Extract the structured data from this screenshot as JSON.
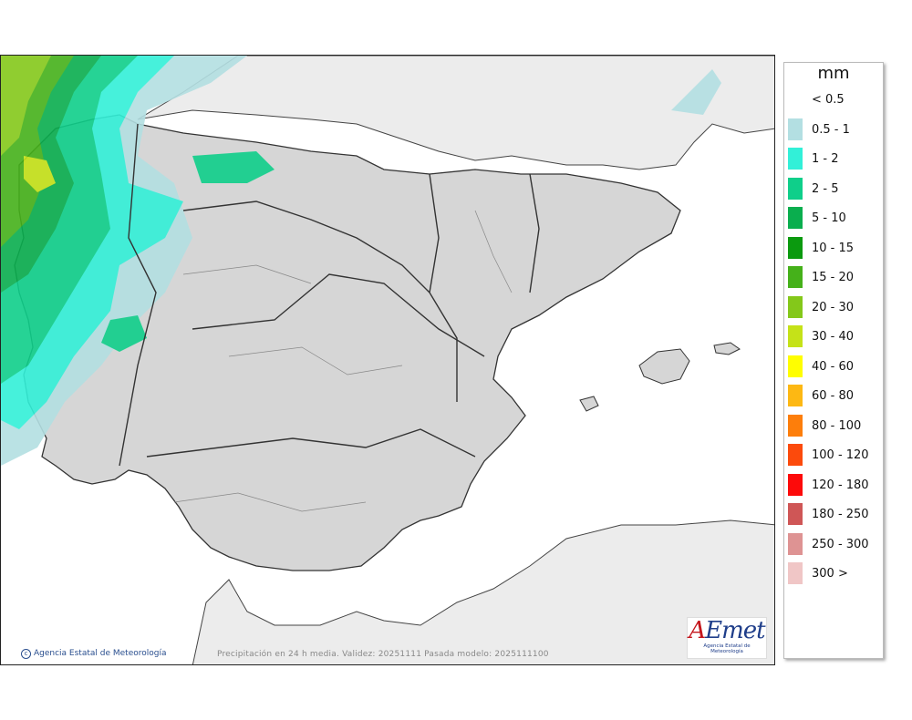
{
  "legend": {
    "unit": "mm",
    "items": [
      {
        "label": "< 0.5",
        "color": "#ffffff"
      },
      {
        "label": "0.5 - 1",
        "color": "#b3dfe2"
      },
      {
        "label": "1 - 2",
        "color": "#32f0d8"
      },
      {
        "label": "2 - 5",
        "color": "#0fcf8a"
      },
      {
        "label": "5 - 10",
        "color": "#0aae4e"
      },
      {
        "label": "10 - 15",
        "color": "#0b9a0f"
      },
      {
        "label": "15 - 20",
        "color": "#45b11a"
      },
      {
        "label": "20 - 30",
        "color": "#84c81a"
      },
      {
        "label": "30 - 40",
        "color": "#c5e218"
      },
      {
        "label": "40 - 60",
        "color": "#fffe00"
      },
      {
        "label": "60 - 80",
        "color": "#fdb813"
      },
      {
        "label": "80 - 100",
        "color": "#fd7e0b"
      },
      {
        "label": "100 - 120",
        "color": "#fc4a0c"
      },
      {
        "label": "120 - 180",
        "color": "#fd0a0a"
      },
      {
        "label": "180 - 250",
        "color": "#cf5656"
      },
      {
        "label": "250 - 300",
        "color": "#de9393"
      },
      {
        "label": "300 >",
        "color": "#f0c6c6"
      }
    ]
  },
  "footer": {
    "copyright": "Agencia Estatal de Meteorología",
    "caption": "Precipitación en 24 h media. Validez: 20251111 Pasada modelo: 2025111100"
  },
  "logo": {
    "name_a": "A",
    "name_rest": "Emet",
    "subtitle": "Agencia Estatal de Meteorología"
  },
  "colors": {
    "sea": "#ffffff",
    "land": "#d6d6d6",
    "foreign_land": "#ececec"
  }
}
